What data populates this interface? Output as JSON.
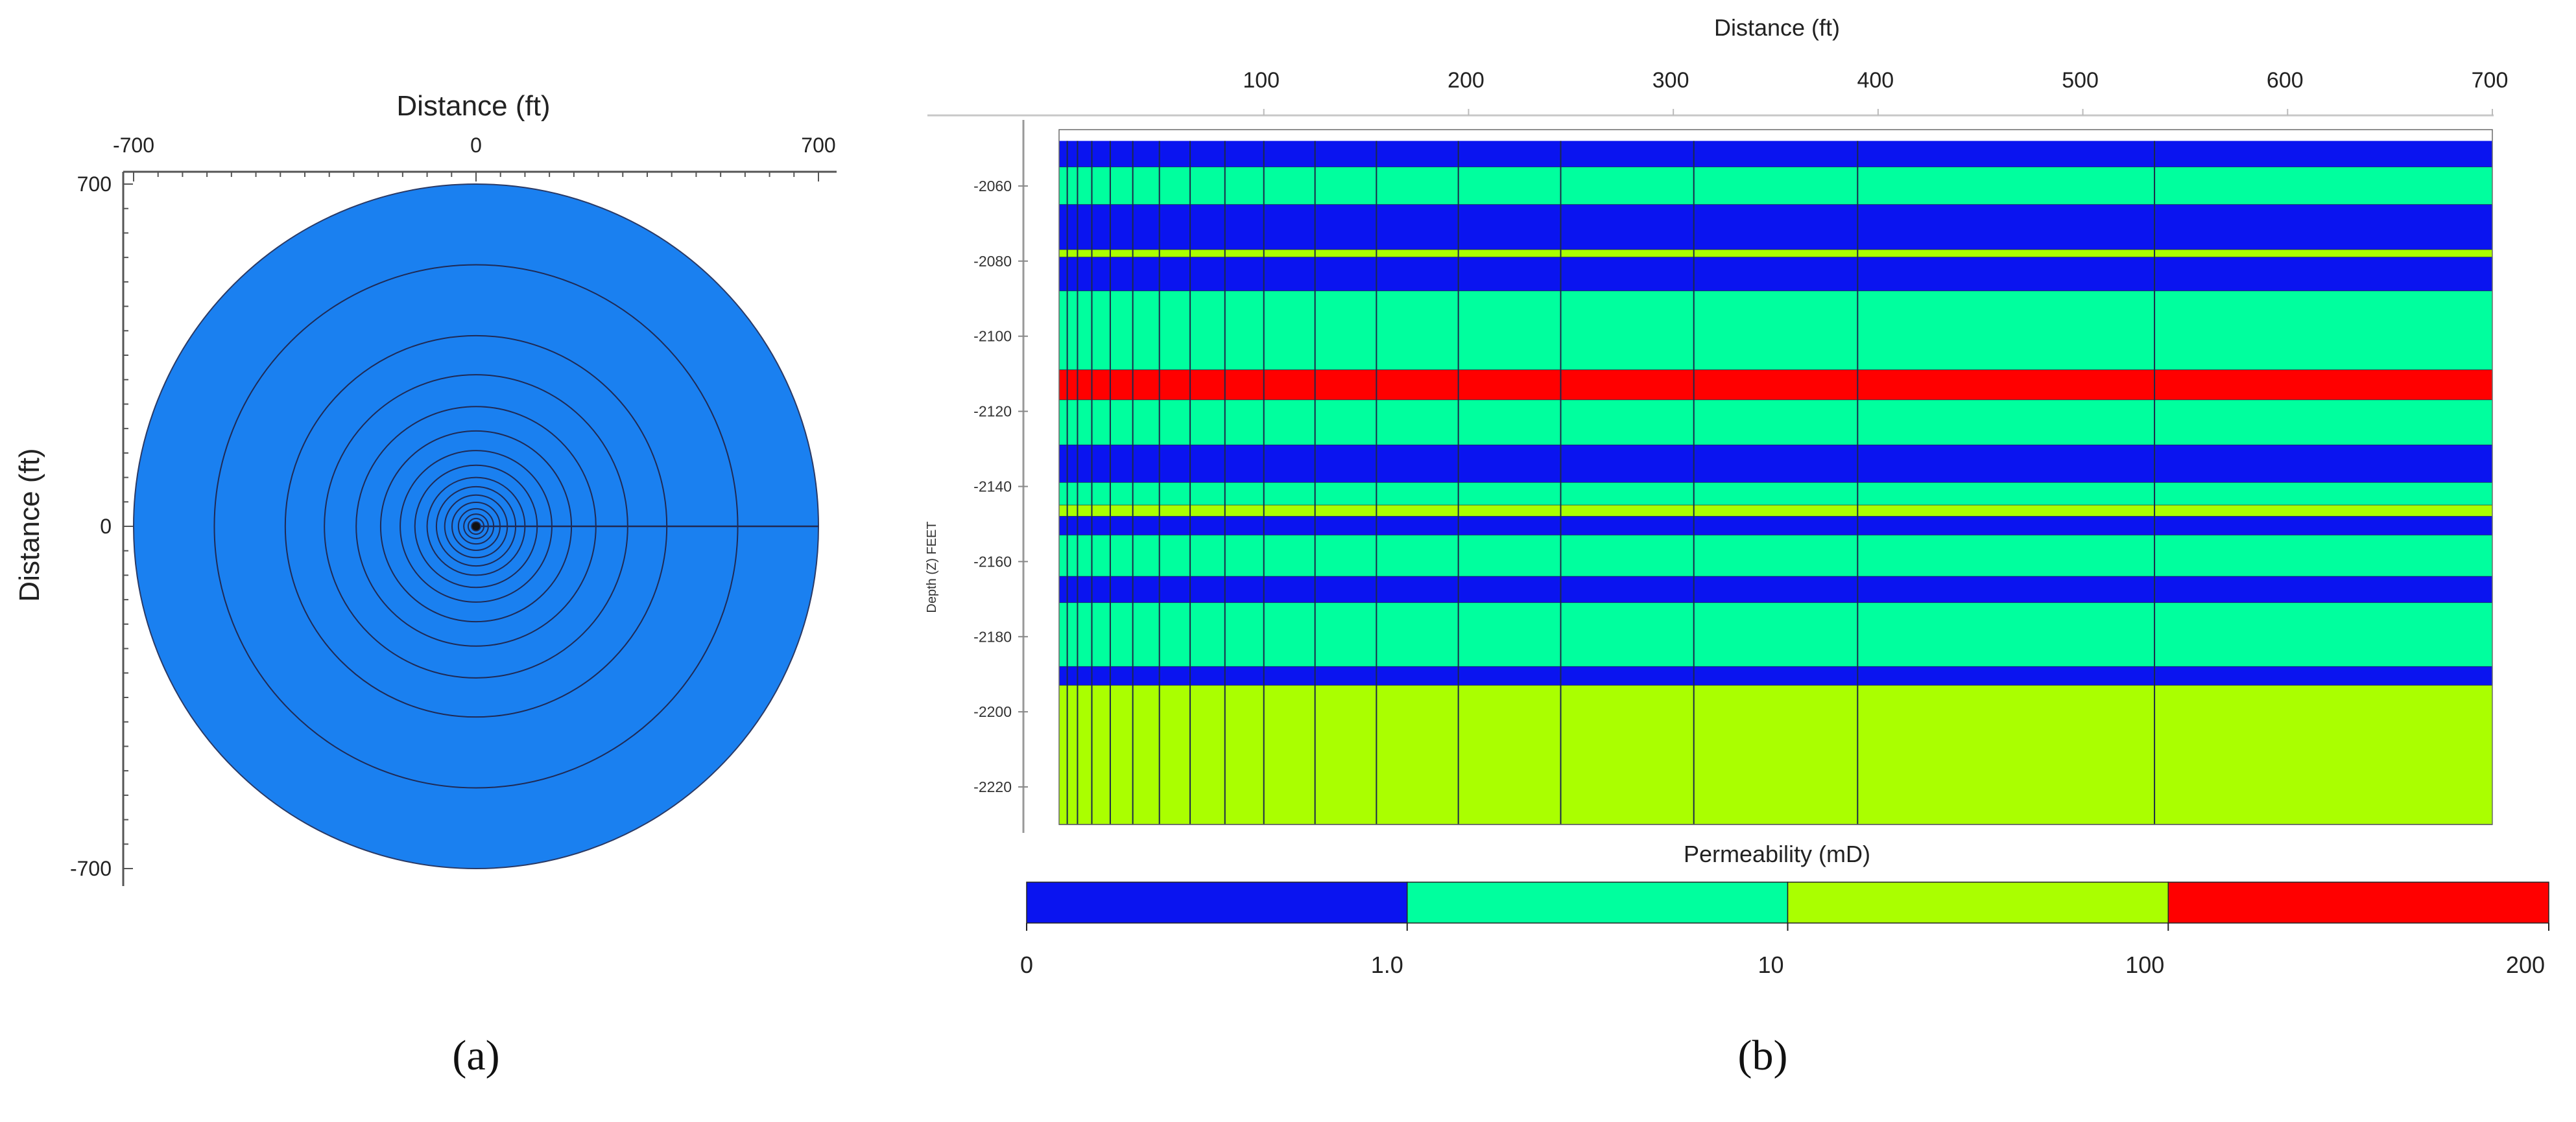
{
  "chart_data": [
    {
      "type": "radial-grid",
      "panel_label": "(a)",
      "xlabel": "Distance (ft)",
      "ylabel": "Distance (ft)",
      "xlim": [
        -700,
        700
      ],
      "ylim": [
        -700,
        700
      ],
      "x_tick_labels": [
        "-700",
        "0",
        "700"
      ],
      "y_tick_labels": [
        "700",
        "0",
        "-700"
      ],
      "x_tick_values": [
        -700,
        0,
        700
      ],
      "y_tick_values": [
        700,
        0,
        -700
      ],
      "outer_radius": 700,
      "ring_radii": [
        4,
        9,
        16,
        25,
        36,
        49,
        64,
        81,
        100,
        125,
        155,
        195,
        245,
        310,
        390,
        535
      ],
      "radial_line": {
        "from": 0,
        "to": 700
      },
      "fill_color": "#1a80f0"
    },
    {
      "type": "heatmap",
      "panel_label": "(b)",
      "title": "Distance (ft)",
      "ylabel": "Depth  (Z)   FEET",
      "xlim": [
        0,
        700
      ],
      "ylim": [
        -2230,
        -2045
      ],
      "x_tick_labels": [
        "100",
        "200",
        "300",
        "400",
        "500",
        "600",
        "700"
      ],
      "x_tick_values": [
        100,
        200,
        300,
        400,
        500,
        600,
        700
      ],
      "y_tick_labels": [
        "-2060",
        "-2080",
        "-2100",
        "-2120",
        "-2140",
        "-2160",
        "-2180",
        "-2200",
        "-2220"
      ],
      "y_tick_values": [
        -2060,
        -2080,
        -2100,
        -2120,
        -2140,
        -2160,
        -2180,
        -2200,
        -2220
      ],
      "grid_x_boundaries": [
        4,
        9,
        16,
        25,
        36,
        49,
        64,
        81,
        100,
        125,
        155,
        195,
        245,
        310,
        390,
        535
      ],
      "layers": [
        {
          "top": -2048,
          "bottom": -2055,
          "category": 0
        },
        {
          "top": -2055,
          "bottom": -2065,
          "category": 1
        },
        {
          "top": -2065,
          "bottom": -2077,
          "category": 0
        },
        {
          "top": -2077,
          "bottom": -2079,
          "category": 2
        },
        {
          "top": -2079,
          "bottom": -2088,
          "category": 0
        },
        {
          "top": -2088,
          "bottom": -2109,
          "category": 1
        },
        {
          "top": -2109,
          "bottom": -2117,
          "category": 3
        },
        {
          "top": -2117,
          "bottom": -2129,
          "category": 1
        },
        {
          "top": -2129,
          "bottom": -2139,
          "category": 0
        },
        {
          "top": -2139,
          "bottom": -2145,
          "category": 1
        },
        {
          "top": -2145,
          "bottom": -2148,
          "category": 2
        },
        {
          "top": -2148,
          "bottom": -2153,
          "category": 0
        },
        {
          "top": -2153,
          "bottom": -2164,
          "category": 1
        },
        {
          "top": -2164,
          "bottom": -2171,
          "category": 0
        },
        {
          "top": -2171,
          "bottom": -2188,
          "category": 1
        },
        {
          "top": -2188,
          "bottom": -2193,
          "category": 0
        },
        {
          "top": -2193,
          "bottom": -2230,
          "category": 2
        }
      ],
      "colorbar": {
        "title": "Permeability (mD)",
        "colors": [
          "#0a14f0",
          "#00ff9e",
          "#aaff00",
          "#ff0000"
        ],
        "tick_labels": [
          "0",
          "1.0",
          "10",
          "100",
          "200"
        ]
      }
    }
  ]
}
